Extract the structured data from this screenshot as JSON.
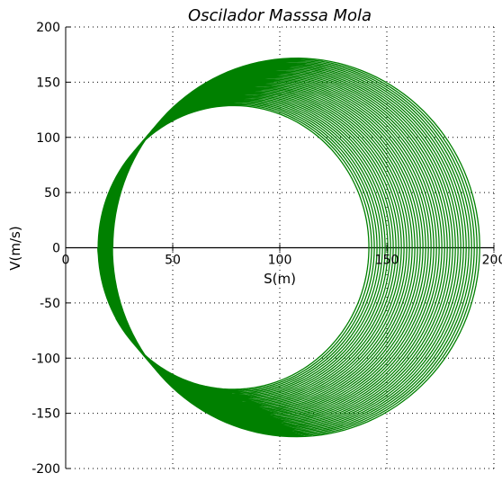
{
  "chart_data": {
    "type": "line",
    "title": "Oscilador Masssa Mola",
    "xlabel": "S(m)",
    "ylabel": "V(m/s)",
    "xlim": [
      0,
      200
    ],
    "ylim": [
      -200,
      200
    ],
    "xticks": [
      0,
      50,
      100,
      150,
      200
    ],
    "yticks": [
      -200,
      -150,
      -100,
      -50,
      0,
      50,
      100,
      150,
      200
    ],
    "grid": true,
    "legend": "none",
    "colors": {
      "series": "#008000"
    },
    "series": [
      {
        "kind": "phase-spiral",
        "start": {
          "S": 12,
          "V": 65
        },
        "end": {
          "S": 150,
          "V": 0
        },
        "center_S": {
          "start": 78,
          "end": 108
        },
        "amplitude_S": {
          "start": 63,
          "end": 86
        },
        "velocity_amplitude": {
          "start": 128,
          "end": 172
        },
        "cycles": 42,
        "velocity_extremes": {
          "max": 180,
          "min": -170
        },
        "position_extremes": {
          "min": 12,
          "max": 194
        }
      }
    ]
  }
}
